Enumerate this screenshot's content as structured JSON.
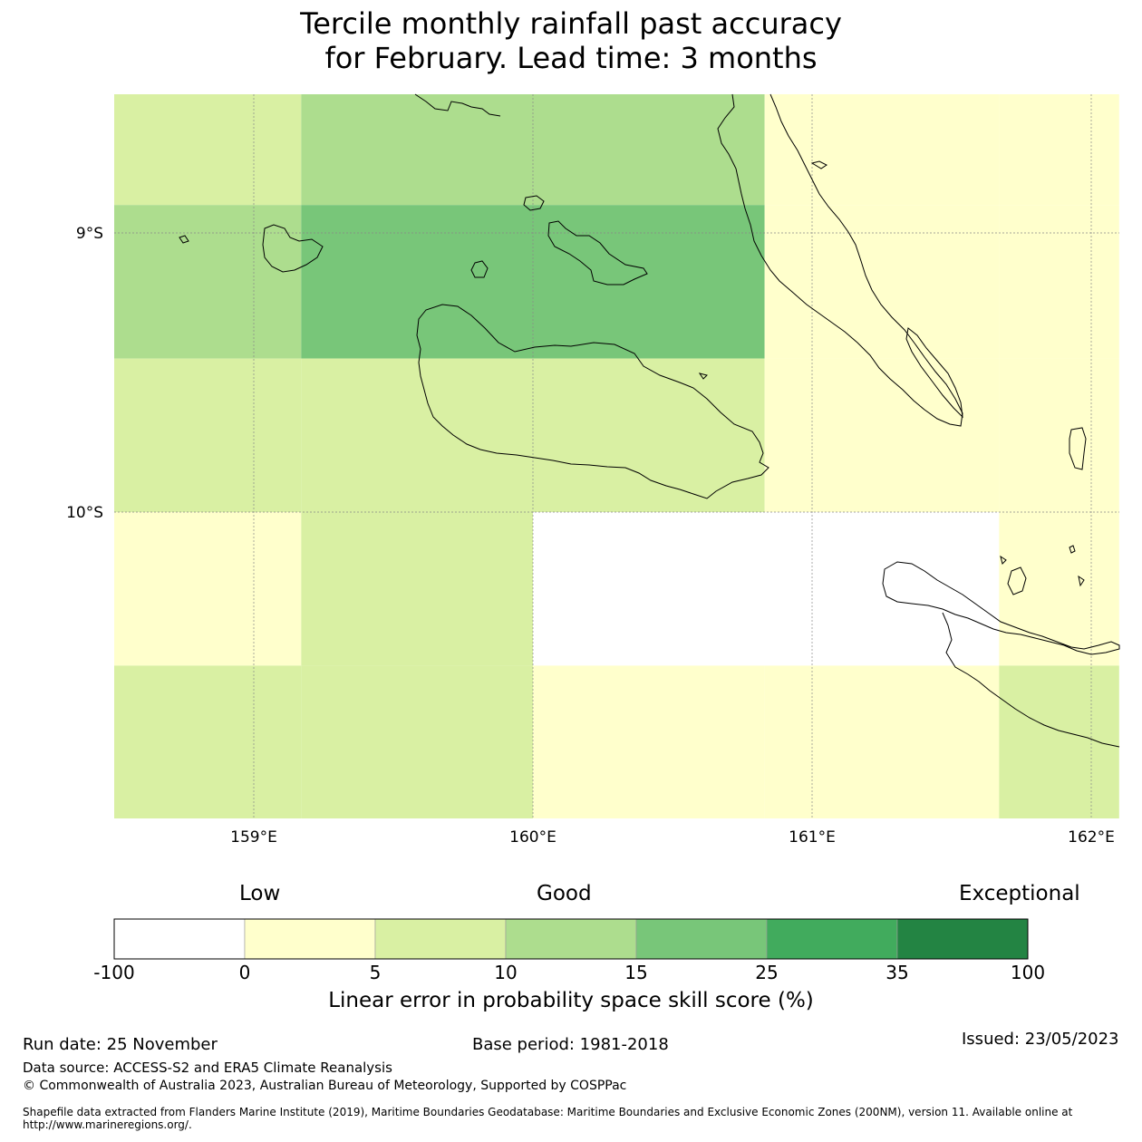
{
  "title": {
    "line1": "Tercile monthly rainfall past accuracy",
    "line2": "for February. Lead time: 3 months"
  },
  "map": {
    "lat_labels": [
      "9°S",
      "10°S"
    ],
    "lon_labels": [
      "159°E",
      "160°E",
      "161°E",
      "162°E"
    ],
    "skill_grid": {
      "description_rows": [
        "8.6S",
        "9.15S",
        "9.7S",
        "10.25S",
        "10.8S"
      ],
      "col_edges_lon": [
        158.5,
        159.17,
        160.0,
        160.83,
        161.67,
        162.1
      ],
      "row_edges_lat": [
        -8.5,
        -8.9,
        -9.45,
        -10.0,
        -10.55,
        -11.1
      ],
      "values": [
        [
          7.5,
          12.5,
          12.5,
          2.5,
          2.5
        ],
        [
          12.5,
          20,
          20,
          2.5,
          2.5
        ],
        [
          7.5,
          7.5,
          7.5,
          2.5,
          2.5
        ],
        [
          2.5,
          7.5,
          -50,
          -50,
          2.5
        ],
        [
          7.5,
          7.5,
          2.5,
          2.5,
          7.5
        ]
      ]
    },
    "colors": {
      "bin_-100_0": "#ffffff",
      "bin_0_5": "#ffffcc",
      "bin_5_10": "#d9f0a3",
      "bin_10_15": "#addd8e",
      "bin_15_25": "#78c679",
      "bin_25_35": "#41ab5d",
      "bin_35_100": "#238443"
    }
  },
  "colorbar": {
    "categories": [
      "Low",
      "Good",
      "Exceptional"
    ],
    "ticks": [
      "-100",
      "0",
      "5",
      "10",
      "15",
      "25",
      "35",
      "100"
    ],
    "colors": [
      "#ffffff",
      "#ffffcc",
      "#d9f0a3",
      "#addd8e",
      "#78c679",
      "#41ab5d",
      "#238443"
    ],
    "label": "Linear error in probability space skill score (%)"
  },
  "footer": {
    "run_date": "Run date: 25 November",
    "base_period": "Base period: 1981-2018",
    "issued": "Issued: 23/05/2023",
    "data_source": "Data source: ACCESS-S2 and ERA5 Climate Reanalysis",
    "copyright": "© Commonwealth of Australia 2023, Australian Bureau of Meteorology, Supported by COSPPac",
    "shapefile": "Shapefile data extracted from Flanders Marine Institute (2019), Maritime Boundaries Geodatabase: Maritime Boundaries and Exclusive Economic Zones (200NM), version 11. Available online at http://www.marineregions.org/."
  }
}
